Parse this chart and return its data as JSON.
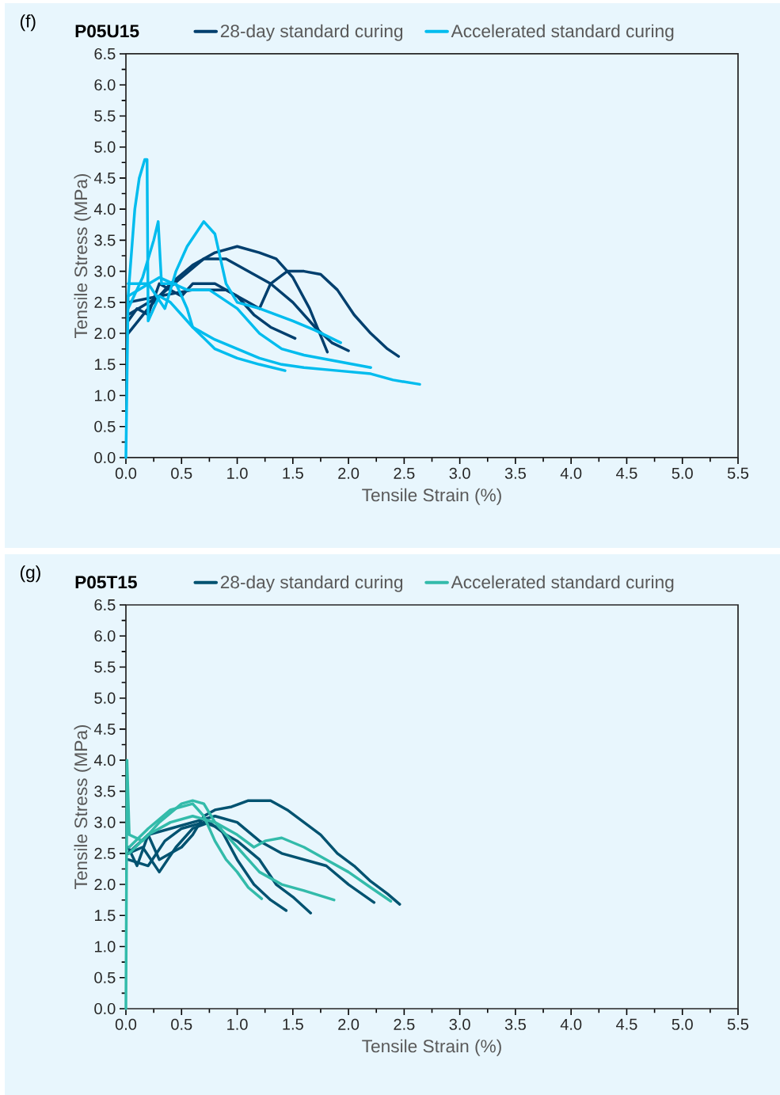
{
  "chart_data": [
    {
      "type": "line",
      "title": "(f)",
      "subtitle": "P05U15",
      "xlabel": "Tensile Strain (%)",
      "ylabel": "Tensile Stress (MPa)",
      "legend": "top",
      "marker": "none",
      "line_style": "solid",
      "xlim": [
        0,
        5.5
      ],
      "ylim": [
        0,
        6.5
      ],
      "xticks": [
        {
          "value": 0,
          "label": "0.0"
        },
        {
          "value": 0.5,
          "label": "0.5"
        },
        {
          "value": 1,
          "label": "1.0"
        },
        {
          "value": 1.5,
          "label": "1.5"
        },
        {
          "value": 2,
          "label": "2.0"
        },
        {
          "value": 2.5,
          "label": "2.5"
        },
        {
          "value": 3,
          "label": "3.0"
        },
        {
          "value": 3.5,
          "label": "3.5"
        },
        {
          "value": 4,
          "label": "4.0"
        },
        {
          "value": 4.5,
          "label": "4.5"
        },
        {
          "value": 5,
          "label": "5.0"
        },
        {
          "value": 5.5,
          "label": "5.5"
        }
      ],
      "yticks": [
        {
          "value": 0,
          "label": "0.0"
        },
        {
          "value": 0.5,
          "label": "0.5"
        },
        {
          "value": 1,
          "label": "1.0"
        },
        {
          "value": 1.5,
          "label": "1.5"
        },
        {
          "value": 2,
          "label": "2.0"
        },
        {
          "value": 2.5,
          "label": "2.5"
        },
        {
          "value": 3,
          "label": "3.0"
        },
        {
          "value": 3.5,
          "label": "3.5"
        },
        {
          "value": 4,
          "label": "4.0"
        },
        {
          "value": 4.5,
          "label": "4.5"
        },
        {
          "value": 5,
          "label": "5.0"
        },
        {
          "value": 5.5,
          "label": "5.5"
        },
        {
          "value": 6,
          "label": "6.0"
        },
        {
          "value": 6.5,
          "label": "6.5"
        }
      ],
      "series": [
        {
          "name": "28-day standard curing",
          "color": "#003f6e",
          "x": [
            0.02,
            0.1,
            0.2,
            0.3,
            0.4,
            0.5,
            0.6,
            0.8,
            1.0,
            1.15,
            1.3,
            1.52
          ],
          "values": [
            2.2,
            2.4,
            2.3,
            2.8,
            2.7,
            2.6,
            2.8,
            2.8,
            2.6,
            2.3,
            2.1,
            1.92
          ]
        },
        {
          "color": "#003f6e",
          "x": [
            0.02,
            0.2,
            0.4,
            0.6,
            0.8,
            1.0,
            1.2,
            1.35,
            1.5,
            1.65,
            1.81
          ],
          "values": [
            2.0,
            2.4,
            2.8,
            3.1,
            3.3,
            3.4,
            3.3,
            3.2,
            2.9,
            2.4,
            1.7
          ]
        },
        {
          "color": "#003f6e",
          "x": [
            0.02,
            0.3,
            0.5,
            0.7,
            0.9,
            1.1,
            1.3,
            1.5,
            1.7,
            1.85,
            2.0
          ],
          "values": [
            2.3,
            2.6,
            2.9,
            3.2,
            3.2,
            3.0,
            2.8,
            2.5,
            2.1,
            1.85,
            1.72
          ]
        },
        {
          "color": "#003f6e",
          "x": [
            0.02,
            0.3,
            0.6,
            0.9,
            1.1,
            1.2,
            1.3,
            1.45,
            1.6,
            1.75,
            1.9,
            2.05,
            2.2,
            2.35,
            2.45
          ],
          "values": [
            2.5,
            2.6,
            2.7,
            2.7,
            2.5,
            2.4,
            2.8,
            3.0,
            3.0,
            2.95,
            2.7,
            2.3,
            2.0,
            1.75,
            1.63
          ]
        },
        {
          "name": "Accelerated standard curing",
          "color": "#00bcee",
          "x": [
            0,
            0.02,
            0.08,
            0.12,
            0.17,
            0.19,
            0.2,
            0.3,
            0.4,
            0.5,
            0.6,
            0.8,
            1.0,
            1.2,
            1.4,
            1.6,
            1.9,
            2.2,
            2.4,
            2.64
          ],
          "values": [
            0,
            2.6,
            4.0,
            4.5,
            4.8,
            4.8,
            2.2,
            2.6,
            2.5,
            2.3,
            2.1,
            1.9,
            1.75,
            1.6,
            1.5,
            1.45,
            1.4,
            1.35,
            1.25,
            1.18
          ]
        },
        {
          "color": "#00bcee",
          "x": [
            0.02,
            0.15,
            0.25,
            0.29,
            0.32,
            0.45,
            0.55,
            0.6,
            0.8,
            1.0,
            1.2,
            1.43
          ],
          "values": [
            2.4,
            2.9,
            3.5,
            3.8,
            2.8,
            2.8,
            2.4,
            2.1,
            1.75,
            1.6,
            1.5,
            1.4
          ]
        },
        {
          "color": "#00bcee",
          "x": [
            0.02,
            0.2,
            0.35,
            0.45,
            0.55,
            0.7,
            0.8,
            0.9,
            1.0,
            1.2,
            1.5,
            1.7,
            1.93
          ],
          "values": [
            2.8,
            2.8,
            2.4,
            3.0,
            3.4,
            3.8,
            3.6,
            2.8,
            2.5,
            2.4,
            2.2,
            2.05,
            1.85
          ]
        },
        {
          "color": "#00bcee",
          "x": [
            0.02,
            0.3,
            0.55,
            0.75,
            1.0,
            1.2,
            1.4,
            1.6,
            1.9,
            2.2
          ],
          "values": [
            2.6,
            2.9,
            2.7,
            2.7,
            2.4,
            2.0,
            1.75,
            1.65,
            1.55,
            1.45
          ]
        }
      ]
    },
    {
      "type": "line",
      "title": "(g)",
      "subtitle": "P05T15",
      "xlabel": "Tensile Strain (%)",
      "ylabel": "Tensile Stress (MPa)",
      "legend": "top",
      "marker": "none",
      "line_style": "solid",
      "xlim": [
        0,
        5.5
      ],
      "ylim": [
        0,
        6.5
      ],
      "xticks": [
        {
          "value": 0,
          "label": "0.0"
        },
        {
          "value": 0.5,
          "label": "0.5"
        },
        {
          "value": 1,
          "label": "1.0"
        },
        {
          "value": 1.5,
          "label": "1.5"
        },
        {
          "value": 2,
          "label": "2.0"
        },
        {
          "value": 2.5,
          "label": "2.5"
        },
        {
          "value": 3,
          "label": "3.0"
        },
        {
          "value": 3.5,
          "label": "3.5"
        },
        {
          "value": 4,
          "label": "4.0"
        },
        {
          "value": 4.5,
          "label": "4.5"
        },
        {
          "value": 5,
          "label": "5.0"
        },
        {
          "value": 5.5,
          "label": "5.5"
        }
      ],
      "yticks": [
        {
          "value": 0,
          "label": "0.0"
        },
        {
          "value": 0.5,
          "label": "0.5"
        },
        {
          "value": 1,
          "label": "1.0"
        },
        {
          "value": 1.5,
          "label": "1.5"
        },
        {
          "value": 2,
          "label": "2.0"
        },
        {
          "value": 2.5,
          "label": "2.5"
        },
        {
          "value": 3,
          "label": "3.0"
        },
        {
          "value": 3.5,
          "label": "3.5"
        },
        {
          "value": 4,
          "label": "4.0"
        },
        {
          "value": 4.5,
          "label": "4.5"
        },
        {
          "value": 5,
          "label": "5.0"
        },
        {
          "value": 5.5,
          "label": "5.5"
        },
        {
          "value": 6,
          "label": "6.0"
        },
        {
          "value": 6.5,
          "label": "6.5"
        }
      ],
      "series": [
        {
          "name": "28-day standard curing",
          "color": "#005270",
          "x": [
            0.02,
            0.1,
            0.2,
            0.3,
            0.4,
            0.5,
            0.6,
            0.7,
            0.8,
            0.95,
            1.1,
            1.3,
            1.45,
            1.6,
            1.75,
            1.9,
            2.05,
            2.2,
            2.35,
            2.46
          ],
          "values": [
            2.6,
            2.3,
            2.8,
            2.4,
            2.5,
            2.6,
            2.8,
            3.1,
            3.2,
            3.25,
            3.35,
            3.35,
            3.2,
            3.0,
            2.8,
            2.5,
            2.3,
            2.05,
            1.85,
            1.68
          ]
        },
        {
          "color": "#005270",
          "x": [
            0.02,
            0.15,
            0.3,
            0.45,
            0.6,
            0.75,
            0.9,
            1.0,
            1.2,
            1.35,
            1.5,
            1.66
          ],
          "values": [
            2.5,
            2.6,
            2.2,
            2.6,
            2.9,
            3.0,
            2.8,
            2.7,
            2.4,
            2.0,
            1.8,
            1.54
          ]
        },
        {
          "color": "#005270",
          "x": [
            0.02,
            0.2,
            0.35,
            0.5,
            0.7,
            0.85,
            1.0,
            1.15,
            1.3,
            1.44
          ],
          "values": [
            2.4,
            2.3,
            2.7,
            2.9,
            3.0,
            2.9,
            2.4,
            2.0,
            1.75,
            1.58
          ]
        },
        {
          "color": "#005270",
          "x": [
            0.02,
            0.2,
            0.4,
            0.6,
            0.8,
            1.0,
            1.2,
            1.4,
            1.6,
            1.8,
            2.0,
            2.23
          ],
          "values": [
            2.5,
            2.8,
            2.9,
            3.0,
            3.1,
            3.0,
            2.7,
            2.5,
            2.4,
            2.3,
            2.0,
            1.71
          ]
        },
        {
          "name": "Accelerated standard curing",
          "color": "#33bbaa",
          "x": [
            0,
            0.01,
            0.03,
            0.15,
            0.3,
            0.5,
            0.6,
            0.7,
            0.8,
            0.9,
            1.0,
            1.1,
            1.2,
            1.4,
            1.6,
            1.87
          ],
          "values": [
            0,
            4.0,
            2.8,
            2.7,
            3.0,
            3.3,
            3.35,
            3.3,
            3.0,
            2.8,
            2.6,
            2.4,
            2.2,
            2.0,
            1.9,
            1.75
          ]
        },
        {
          "color": "#33bbaa",
          "x": [
            0.03,
            0.2,
            0.4,
            0.6,
            0.7,
            0.8,
            0.9,
            1.0,
            1.1,
            1.22
          ],
          "values": [
            2.6,
            2.9,
            3.2,
            3.3,
            3.1,
            2.7,
            2.4,
            2.2,
            1.95,
            1.77
          ]
        },
        {
          "color": "#33bbaa",
          "x": [
            0.03,
            0.2,
            0.4,
            0.6,
            0.8,
            1.0,
            1.15,
            1.25,
            1.4,
            1.6,
            1.8,
            2.0,
            2.2,
            2.38
          ],
          "values": [
            2.5,
            2.8,
            3.0,
            3.1,
            3.0,
            2.8,
            2.6,
            2.7,
            2.75,
            2.6,
            2.4,
            2.2,
            1.95,
            1.73
          ]
        }
      ]
    }
  ]
}
